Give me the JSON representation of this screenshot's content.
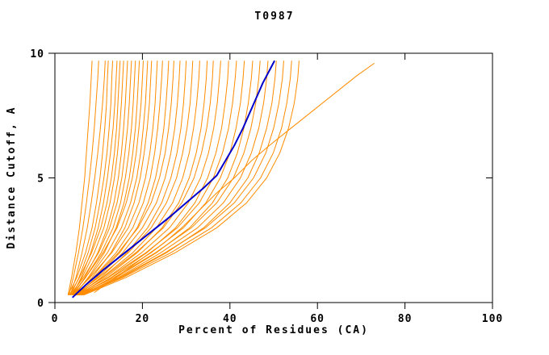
{
  "chart_data": {
    "type": "line",
    "title": "T0987",
    "xlabel": "Percent of Residues (CA)",
    "ylabel": "Distance Cutoff, A",
    "xlim": [
      0,
      100
    ],
    "ylim": [
      0,
      10
    ],
    "x_ticks": [
      0,
      20,
      40,
      60,
      80,
      100
    ],
    "y_ticks": [
      0,
      5,
      10
    ],
    "grid": false,
    "legend": "none",
    "colors": {
      "models": "#ff8c00",
      "highlight": "#0000cc",
      "axis": "#000000",
      "background": "#ffffff"
    },
    "bundle_ys": [
      0.3,
      1,
      2,
      3,
      4,
      5,
      6,
      7,
      8,
      9,
      9.7
    ],
    "model_curves": [
      [
        3.0,
        3.8,
        4.8,
        5.6,
        6.2,
        6.8,
        7.2,
        7.6,
        8.0,
        8.3,
        8.5
      ],
      [
        3.2,
        4.2,
        5.4,
        6.4,
        7.2,
        7.9,
        8.5,
        9.0,
        9.4,
        9.8,
        10.0
      ],
      [
        3.5,
        4.8,
        6.2,
        7.4,
        8.3,
        9.1,
        9.8,
        10.4,
        10.9,
        11.3,
        11.5
      ],
      [
        3.0,
        5.0,
        7.0,
        8.5,
        9.5,
        10.3,
        10.9,
        11.4,
        11.8,
        12.0,
        12.2
      ],
      [
        3.6,
        5.5,
        7.6,
        9.2,
        10.3,
        11.2,
        11.9,
        12.4,
        12.8,
        13.0,
        13.2
      ],
      [
        4.0,
        6.0,
        8.2,
        9.9,
        11.1,
        12.0,
        12.7,
        13.3,
        13.7,
        14.0,
        14.2
      ],
      [
        3.3,
        5.6,
        8.4,
        10.5,
        11.9,
        12.9,
        13.6,
        14.1,
        14.4,
        14.7,
        14.9
      ],
      [
        3.8,
        6.2,
        9.0,
        11.2,
        12.6,
        13.6,
        14.3,
        14.8,
        15.2,
        15.5,
        15.7
      ],
      [
        4.2,
        6.8,
        9.8,
        12.0,
        13.5,
        14.5,
        15.2,
        15.7,
        16.1,
        16.4,
        16.6
      ],
      [
        3.5,
        6.5,
        10.0,
        12.5,
        14.2,
        15.3,
        16.0,
        16.6,
        17.0,
        17.3,
        17.5
      ],
      [
        4.0,
        7.0,
        10.6,
        13.3,
        15.0,
        16.1,
        16.9,
        17.5,
        17.9,
        18.2,
        18.4
      ],
      [
        4.5,
        7.6,
        11.3,
        14.0,
        15.8,
        17.0,
        17.8,
        18.4,
        18.8,
        19.1,
        19.3
      ],
      [
        3.8,
        7.0,
        11.0,
        14.2,
        16.3,
        17.7,
        18.6,
        19.2,
        19.7,
        20.0,
        20.2
      ],
      [
        4.3,
        7.8,
        12.0,
        15.2,
        17.3,
        18.7,
        19.6,
        20.2,
        20.7,
        21.0,
        21.2
      ],
      [
        4.8,
        8.5,
        12.8,
        16.0,
        18.1,
        19.5,
        20.4,
        21.1,
        21.6,
        21.9,
        22.1
      ],
      [
        4.0,
        8.0,
        13.0,
        16.8,
        19.2,
        20.7,
        21.7,
        22.4,
        22.9,
        23.2,
        23.4
      ],
      [
        4.5,
        8.8,
        14.0,
        17.8,
        20.2,
        21.8,
        22.8,
        23.5,
        24.0,
        24.4,
        24.6
      ],
      [
        5.0,
        9.5,
        14.8,
        18.8,
        21.3,
        23.0,
        24.1,
        24.9,
        25.4,
        25.8,
        26.0
      ],
      [
        4.2,
        9.0,
        14.5,
        19.0,
        22.0,
        23.9,
        25.2,
        26.0,
        26.6,
        27.0,
        27.2
      ],
      [
        4.8,
        9.8,
        15.5,
        20.0,
        23.2,
        25.2,
        26.5,
        27.4,
        28.0,
        28.4,
        28.6
      ],
      [
        5.2,
        10.5,
        16.5,
        21.2,
        24.4,
        26.5,
        27.9,
        28.8,
        29.4,
        29.8,
        30.0
      ],
      [
        4.5,
        10.0,
        16.8,
        22.0,
        25.5,
        27.8,
        29.2,
        30.2,
        30.9,
        31.3,
        31.5
      ],
      [
        5.0,
        10.8,
        17.8,
        23.2,
        26.9,
        29.2,
        30.7,
        31.7,
        32.4,
        32.9,
        33.1
      ],
      [
        5.5,
        11.5,
        18.8,
        24.5,
        28.3,
        30.7,
        32.3,
        33.4,
        34.1,
        34.6,
        34.8
      ],
      [
        4.8,
        11.0,
        18.5,
        24.8,
        29.0,
        31.8,
        33.5,
        34.7,
        35.5,
        36.0,
        36.2
      ],
      [
        5.3,
        12.0,
        19.8,
        26.2,
        30.5,
        33.3,
        35.1,
        36.3,
        37.1,
        37.6,
        37.9
      ],
      [
        5.8,
        12.8,
        21.0,
        27.6,
        32.0,
        34.9,
        36.8,
        38.1,
        38.9,
        39.5,
        39.7
      ],
      [
        5.0,
        12.2,
        20.8,
        28.0,
        33.0,
        36.2,
        38.3,
        39.7,
        40.6,
        41.2,
        41.5
      ],
      [
        5.5,
        13.0,
        22.0,
        29.4,
        34.5,
        37.8,
        40.0,
        41.4,
        42.4,
        43.0,
        43.3
      ],
      [
        6.0,
        14.0,
        23.2,
        30.8,
        36.0,
        39.5,
        41.7,
        43.2,
        44.2,
        44.9,
        45.2
      ],
      [
        5.2,
        13.5,
        23.0,
        31.2,
        37.0,
        40.8,
        43.2,
        44.8,
        45.9,
        46.6,
        46.9
      ],
      [
        5.8,
        14.5,
        24.2,
        32.6,
        38.5,
        42.4,
        44.9,
        46.6,
        47.7,
        48.4,
        48.7
      ],
      [
        6.2,
        15.2,
        25.5,
        34.0,
        40.0,
        44.1,
        46.7,
        48.4,
        49.6,
        50.3,
        50.6
      ],
      [
        5.5,
        14.8,
        25.2,
        34.4,
        41.0,
        45.4,
        48.2,
        50.0,
        51.2,
        52.0,
        52.3
      ],
      [
        6.0,
        15.5,
        26.5,
        35.8,
        42.5,
        47.0,
        49.9,
        51.8,
        53.0,
        53.8,
        54.1
      ],
      [
        6.5,
        16.2,
        27.5,
        37.0,
        43.8,
        48.4,
        51.4,
        53.4,
        54.7,
        55.5,
        55.8
      ]
    ],
    "outlier_curve": [
      [
        9,
        0.4
      ],
      [
        13,
        0.9
      ],
      [
        17,
        1.4
      ],
      [
        21,
        1.9
      ],
      [
        25,
        2.4
      ],
      [
        29,
        3.0
      ],
      [
        33,
        3.7
      ],
      [
        37,
        4.4
      ],
      [
        41,
        5.0
      ],
      [
        45,
        5.7
      ],
      [
        49,
        6.3
      ],
      [
        54,
        7.0
      ],
      [
        59,
        7.7
      ],
      [
        64,
        8.4
      ],
      [
        69,
        9.1
      ],
      [
        73,
        9.6
      ]
    ],
    "highlight_curve": [
      [
        4,
        0.2
      ],
      [
        7,
        0.7
      ],
      [
        11,
        1.3
      ],
      [
        16,
        2.0
      ],
      [
        21,
        2.7
      ],
      [
        26,
        3.4
      ],
      [
        30,
        4.0
      ],
      [
        34,
        4.6
      ],
      [
        37,
        5.1
      ],
      [
        39,
        5.7
      ],
      [
        41,
        6.3
      ],
      [
        43,
        7.0
      ],
      [
        44.5,
        7.6
      ],
      [
        46,
        8.2
      ],
      [
        47.5,
        8.8
      ],
      [
        49,
        9.3
      ],
      [
        50.2,
        9.7
      ]
    ]
  }
}
